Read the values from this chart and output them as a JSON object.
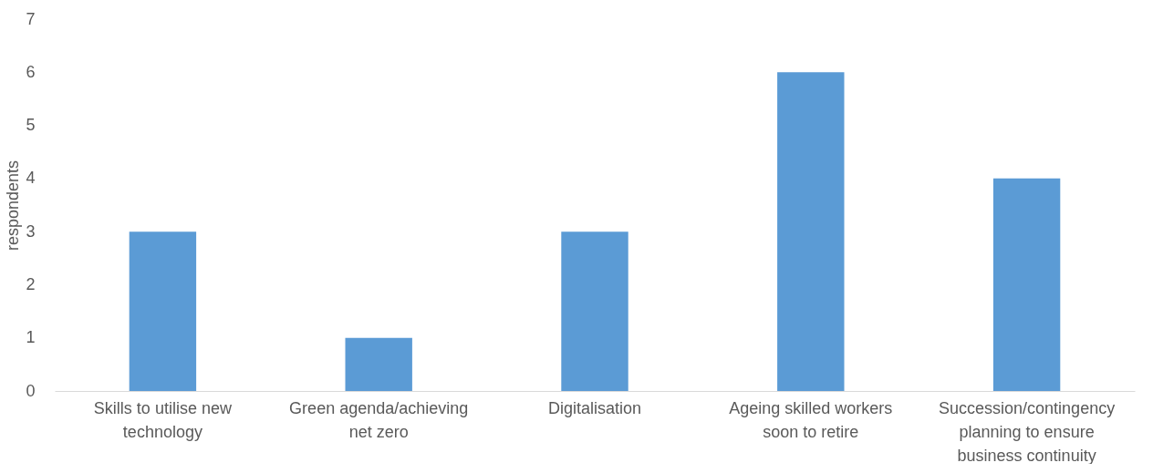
{
  "chart_data": {
    "type": "bar",
    "ylabel": "respondents",
    "categories": [
      "Skills to utilise new technology",
      "Green agenda/achieving net zero",
      "Digitalisation",
      "Ageing skilled workers soon to retire",
      "Succession/contingency planning to ensure business continuity"
    ],
    "values": [
      3,
      1,
      3,
      6,
      4
    ],
    "color": "#5b9bd5",
    "ylim": [
      0,
      7
    ],
    "yticks": [
      0,
      1,
      2,
      3,
      4,
      5,
      6,
      7
    ],
    "grid": false
  }
}
